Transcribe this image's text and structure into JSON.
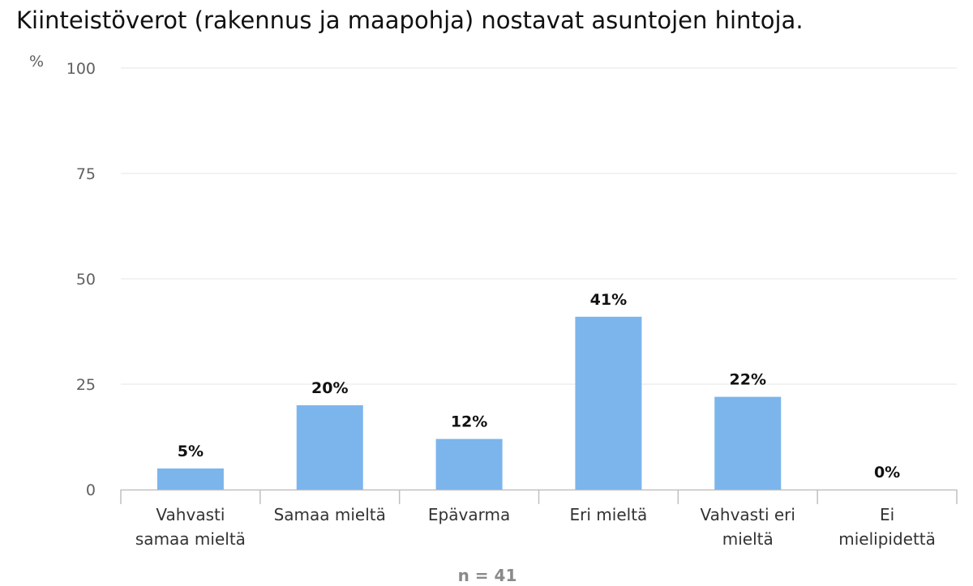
{
  "chart_data": {
    "type": "bar",
    "title": "Kiinteistöverot (rakennus ja maapohja) nostavat asuntojen hintoja.",
    "ylabel": "%",
    "xlabel": "",
    "ylim": [
      0,
      100
    ],
    "yticks": [
      0,
      25,
      50,
      75,
      100
    ],
    "grid": true,
    "categories": [
      "Vahvasti samaa mieltä",
      "Samaa mieltä",
      "Epävarma",
      "Eri mieltä",
      "Vahvasti eri mieltä",
      "Ei mielipidettä"
    ],
    "values": [
      5,
      20,
      12,
      41,
      22,
      0
    ],
    "data_labels": [
      "5%",
      "20%",
      "12%",
      "41%",
      "22%",
      "0%"
    ],
    "bar_color": "#7cb5ec",
    "annotation": "n = 41"
  }
}
